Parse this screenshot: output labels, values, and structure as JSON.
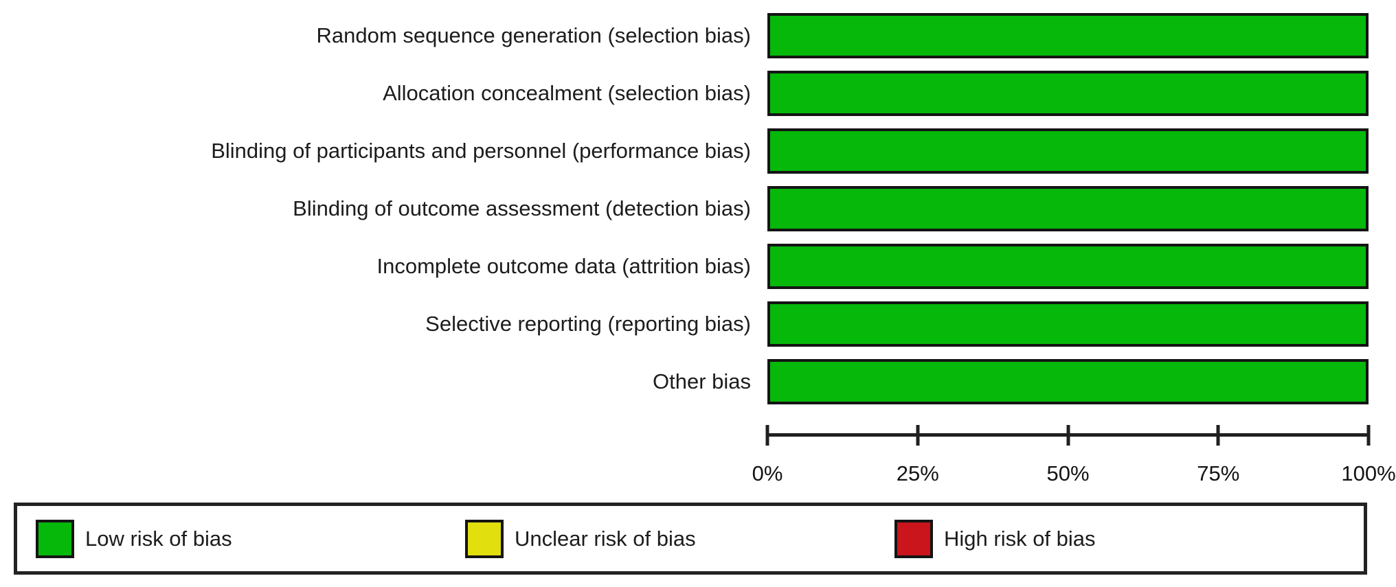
{
  "chart_data": {
    "type": "bar",
    "orientation": "horizontal",
    "stacked": true,
    "unit": "percent",
    "title": "",
    "xlabel": "",
    "ylabel": "",
    "xlim": [
      0,
      100
    ],
    "grid": false,
    "legend_position": "bottom",
    "categories": [
      "Random sequence generation (selection bias)",
      "Allocation concealment (selection bias)",
      "Blinding of participants and personnel (performance bias)",
      "Blinding of outcome assessment (detection bias)",
      "Incomplete outcome data (attrition bias)",
      "Selective reporting (reporting bias)",
      "Other bias"
    ],
    "series": [
      {
        "name": "Low risk of bias",
        "color": "#05b80a",
        "values": [
          100,
          100,
          100,
          100,
          100,
          100,
          100
        ]
      },
      {
        "name": "Unclear risk of bias",
        "color": "#e2df0e",
        "values": [
          0,
          0,
          0,
          0,
          0,
          0,
          0
        ]
      },
      {
        "name": "High risk of bias",
        "color": "#c9151b",
        "values": [
          0,
          0,
          0,
          0,
          0,
          0,
          0
        ]
      }
    ],
    "x_ticks": [
      {
        "label": "0%",
        "pct": 0
      },
      {
        "label": "25%",
        "pct": 25
      },
      {
        "label": "50%",
        "pct": 50
      },
      {
        "label": "75%",
        "pct": 75
      },
      {
        "label": "100%",
        "pct": 100
      }
    ]
  },
  "colors": {
    "bar_border": "#141414",
    "axis": "#202020",
    "legend_border": "#232323",
    "text": "#1c1c1c"
  }
}
